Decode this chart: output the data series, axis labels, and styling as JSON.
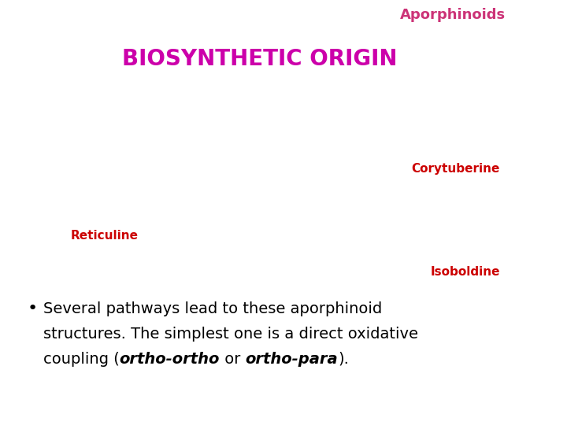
{
  "bg_color": "#ffffff",
  "tab_bg_color": "#f2d0d8",
  "tab_text": "Aporphinoids",
  "tab_text_color": "#cc3377",
  "title_text": "BIOSYNTHETIC ORIGIN",
  "title_color": "#cc00aa",
  "label1_text": "Corytuberine",
  "label2_text": "Reticuline",
  "label3_text": "Isoboldine",
  "label_color": "#cc0000",
  "bullet_line1": "Several pathways lead to these aporphinoid",
  "bullet_line2": "structures. The simplest one is a direct oxidative",
  "bullet_line3_a": "coupling (",
  "bullet_line3_b": "ortho-ortho",
  "bullet_line3_c": " or ",
  "bullet_line3_d": "ortho-para",
  "bullet_line3_e": ").",
  "bullet_color": "#000000"
}
